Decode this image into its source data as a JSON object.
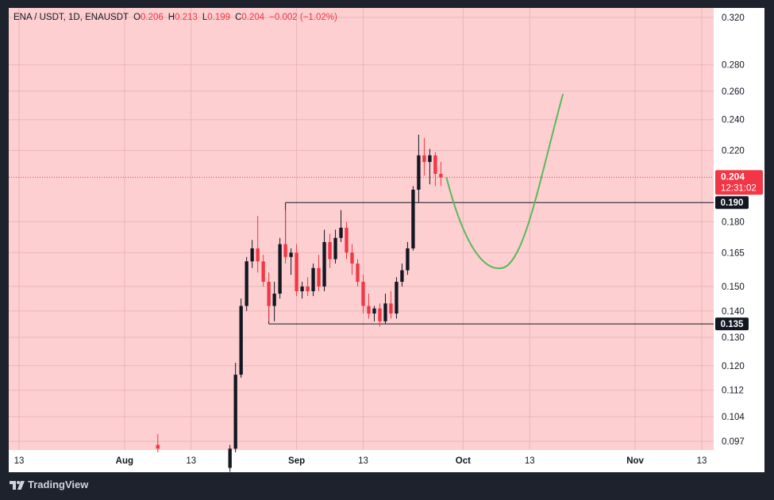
{
  "legend": {
    "symbol": "ENA / USDT, 1D, ENAUSDT",
    "open_label": "O",
    "open": "0.206",
    "high_label": "H",
    "high": "0.213",
    "low_label": "L",
    "low": "0.199",
    "close_label": "C",
    "close": "0.204",
    "change": "−0.002 (−1.02%)"
  },
  "footer": {
    "brand": "TradingView",
    "logo_icon": "tradingview-logo-icon"
  },
  "colors": {
    "background": "#fdcfd0",
    "frame": "#1e222d",
    "bull": "#131722",
    "bear": "#f23645",
    "projection": "#5cb85c",
    "current_price": "#f23645",
    "level": "#131722"
  },
  "chart_data": {
    "type": "candlestick",
    "title": "ENA / USDT, 1D, ENAUSDT",
    "y_scale": "log",
    "ylim": [
      0.095,
      0.325
    ],
    "price_ticks": [
      0.32,
      0.28,
      0.26,
      0.24,
      0.22,
      0.18,
      0.165,
      0.15,
      0.14,
      0.13,
      0.12,
      0.112,
      0.104,
      0.097
    ],
    "price_tick_labels": [
      "0.320",
      "0.280",
      "0.260",
      "0.240",
      "0.220",
      "0.180",
      "0.165",
      "0.150",
      "0.140",
      "0.130",
      "0.120",
      "0.112",
      "0.104",
      "0.097"
    ],
    "time_axis": {
      "start_date": "2024-07-13",
      "end_date": "2024-11-13",
      "ticks": [
        {
          "date": "2024-07-13",
          "label": "13",
          "bold": false
        },
        {
          "date": "2024-08-01",
          "label": "Aug",
          "bold": true
        },
        {
          "date": "2024-08-13",
          "label": "13",
          "bold": false
        },
        {
          "date": "2024-09-01",
          "label": "Sep",
          "bold": true
        },
        {
          "date": "2024-09-13",
          "label": "13",
          "bold": false
        },
        {
          "date": "2024-10-01",
          "label": "Oct",
          "bold": true
        },
        {
          "date": "2024-10-13",
          "label": "13",
          "bold": false
        },
        {
          "date": "2024-11-01",
          "label": "Nov",
          "bold": true
        },
        {
          "date": "2024-11-13",
          "label": "13",
          "bold": false
        }
      ]
    },
    "candles": [
      {
        "date": "2024-08-07",
        "o": 0.096,
        "h": 0.099,
        "l": 0.094,
        "c": 0.095
      },
      {
        "date": "2024-08-20",
        "o": 0.09,
        "h": 0.096,
        "l": 0.089,
        "c": 0.095
      },
      {
        "date": "2024-08-21",
        "o": 0.095,
        "h": 0.121,
        "l": 0.094,
        "c": 0.117
      },
      {
        "date": "2024-08-22",
        "o": 0.117,
        "h": 0.145,
        "l": 0.116,
        "c": 0.142
      },
      {
        "date": "2024-08-23",
        "o": 0.142,
        "h": 0.163,
        "l": 0.14,
        "c": 0.161
      },
      {
        "date": "2024-08-24",
        "o": 0.161,
        "h": 0.171,
        "l": 0.158,
        "c": 0.167
      },
      {
        "date": "2024-08-25",
        "o": 0.167,
        "h": 0.183,
        "l": 0.156,
        "c": 0.161
      },
      {
        "date": "2024-08-26",
        "o": 0.161,
        "h": 0.164,
        "l": 0.15,
        "c": 0.152
      },
      {
        "date": "2024-08-27",
        "o": 0.152,
        "h": 0.156,
        "l": 0.136,
        "c": 0.142
      },
      {
        "date": "2024-08-28",
        "o": 0.142,
        "h": 0.152,
        "l": 0.136,
        "c": 0.147
      },
      {
        "date": "2024-08-29",
        "o": 0.147,
        "h": 0.172,
        "l": 0.145,
        "c": 0.169
      },
      {
        "date": "2024-08-30",
        "o": 0.169,
        "h": 0.186,
        "l": 0.16,
        "c": 0.163
      },
      {
        "date": "2024-08-31",
        "o": 0.163,
        "h": 0.167,
        "l": 0.155,
        "c": 0.165
      },
      {
        "date": "2024-09-01",
        "o": 0.165,
        "h": 0.169,
        "l": 0.146,
        "c": 0.148
      },
      {
        "date": "2024-09-02",
        "o": 0.148,
        "h": 0.152,
        "l": 0.145,
        "c": 0.15
      },
      {
        "date": "2024-09-03",
        "o": 0.15,
        "h": 0.154,
        "l": 0.146,
        "c": 0.148
      },
      {
        "date": "2024-09-04",
        "o": 0.148,
        "h": 0.16,
        "l": 0.146,
        "c": 0.158
      },
      {
        "date": "2024-09-05",
        "o": 0.158,
        "h": 0.164,
        "l": 0.148,
        "c": 0.15
      },
      {
        "date": "2024-09-06",
        "o": 0.15,
        "h": 0.176,
        "l": 0.148,
        "c": 0.17
      },
      {
        "date": "2024-09-07",
        "o": 0.17,
        "h": 0.174,
        "l": 0.158,
        "c": 0.162
      },
      {
        "date": "2024-09-08",
        "o": 0.162,
        "h": 0.176,
        "l": 0.16,
        "c": 0.172
      },
      {
        "date": "2024-09-09",
        "o": 0.172,
        "h": 0.186,
        "l": 0.17,
        "c": 0.177
      },
      {
        "date": "2024-09-10",
        "o": 0.177,
        "h": 0.18,
        "l": 0.162,
        "c": 0.165
      },
      {
        "date": "2024-09-11",
        "o": 0.165,
        "h": 0.169,
        "l": 0.155,
        "c": 0.16
      },
      {
        "date": "2024-09-12",
        "o": 0.16,
        "h": 0.162,
        "l": 0.15,
        "c": 0.152
      },
      {
        "date": "2024-09-13",
        "o": 0.152,
        "h": 0.155,
        "l": 0.139,
        "c": 0.142
      },
      {
        "date": "2024-09-14",
        "o": 0.142,
        "h": 0.147,
        "l": 0.137,
        "c": 0.139
      },
      {
        "date": "2024-09-15",
        "o": 0.139,
        "h": 0.142,
        "l": 0.136,
        "c": 0.141
      },
      {
        "date": "2024-09-16",
        "o": 0.141,
        "h": 0.143,
        "l": 0.134,
        "c": 0.136
      },
      {
        "date": "2024-09-17",
        "o": 0.136,
        "h": 0.147,
        "l": 0.135,
        "c": 0.143
      },
      {
        "date": "2024-09-18",
        "o": 0.143,
        "h": 0.148,
        "l": 0.137,
        "c": 0.139
      },
      {
        "date": "2024-09-19",
        "o": 0.139,
        "h": 0.154,
        "l": 0.137,
        "c": 0.152
      },
      {
        "date": "2024-09-20",
        "o": 0.152,
        "h": 0.16,
        "l": 0.15,
        "c": 0.157
      },
      {
        "date": "2024-09-21",
        "o": 0.157,
        "h": 0.17,
        "l": 0.155,
        "c": 0.167
      },
      {
        "date": "2024-09-22",
        "o": 0.167,
        "h": 0.199,
        "l": 0.166,
        "c": 0.197
      },
      {
        "date": "2024-09-23",
        "o": 0.197,
        "h": 0.23,
        "l": 0.19,
        "c": 0.217
      },
      {
        "date": "2024-09-24",
        "o": 0.217,
        "h": 0.228,
        "l": 0.205,
        "c": 0.213
      },
      {
        "date": "2024-09-25",
        "o": 0.213,
        "h": 0.221,
        "l": 0.2,
        "c": 0.217
      },
      {
        "date": "2024-09-26",
        "o": 0.217,
        "h": 0.219,
        "l": 0.199,
        "c": 0.206
      },
      {
        "date": "2024-09-27",
        "o": 0.206,
        "h": 0.213,
        "l": 0.199,
        "c": 0.204
      }
    ],
    "current_price": {
      "value": 0.204,
      "label": "0.204",
      "countdown": "12:31:02"
    },
    "levels": [
      {
        "value": 0.19,
        "label": "0.190",
        "from_date": "2024-08-30"
      },
      {
        "value": 0.135,
        "label": "0.135",
        "from_date": "2024-08-27"
      }
    ],
    "projection": {
      "points": [
        {
          "date": "2024-09-28",
          "value": 0.204
        },
        {
          "date": "2024-10-08",
          "value": 0.158
        },
        {
          "date": "2024-10-19",
          "value": 0.258
        }
      ]
    }
  }
}
